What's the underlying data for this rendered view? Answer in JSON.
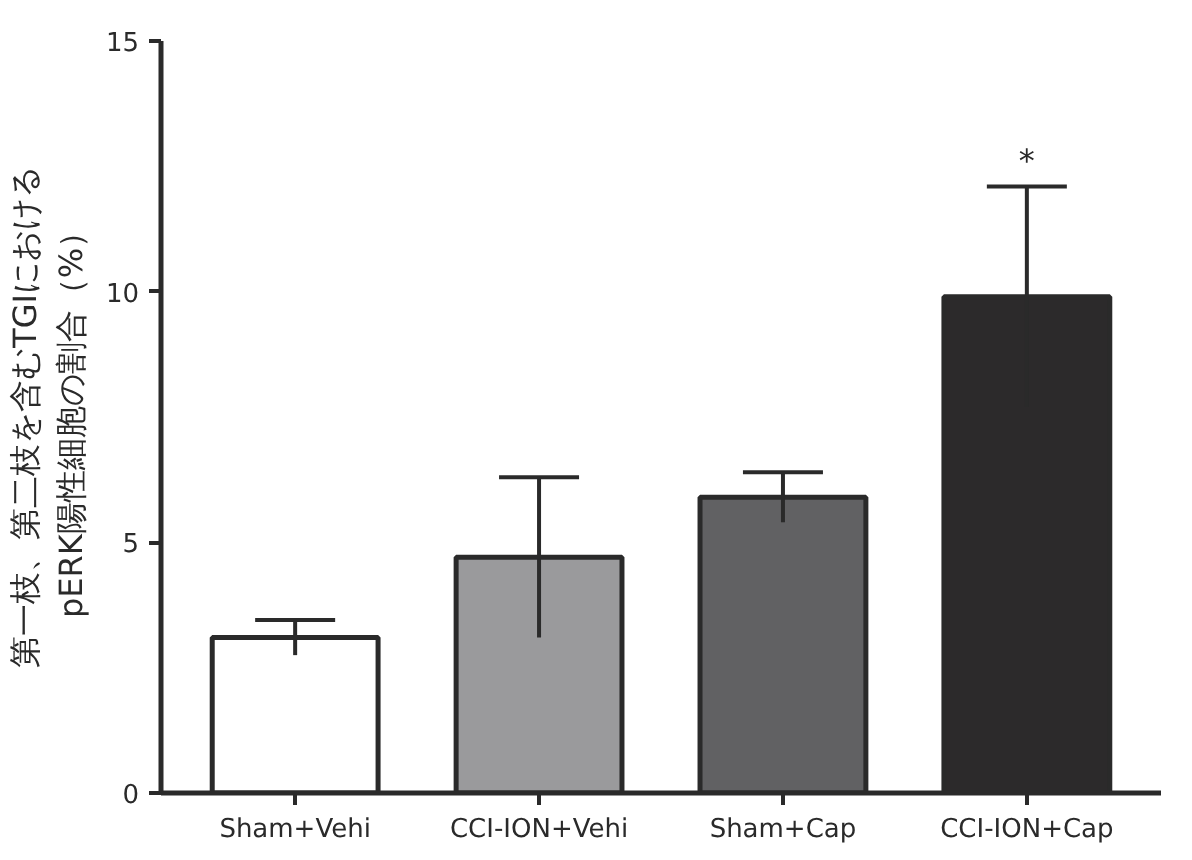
{
  "chart_data": {
    "type": "bar",
    "ylabel": "第一枝、第二枝を含むTGIにおける\npERK陽性細胞の割合（%）",
    "categories": [
      "Sham+Vehi",
      "CCI-ION+Vehi",
      "Sham+Cap",
      "CCI-ION+Cap"
    ],
    "values": [
      3.1,
      4.7,
      5.9,
      9.9
    ],
    "colors": [
      "#ffffff",
      "#9a9a9c",
      "#616163",
      "#2c2a2b"
    ],
    "errors": [
      0.35,
      1.6,
      0.5,
      2.2
    ],
    "ylim": [
      0,
      15
    ],
    "yticks": [
      0,
      5,
      10,
      15
    ],
    "grid": false,
    "annotations": [
      {
        "text": "*",
        "x": "CCI-ION+Cap",
        "y": 12.1
      }
    ]
  }
}
